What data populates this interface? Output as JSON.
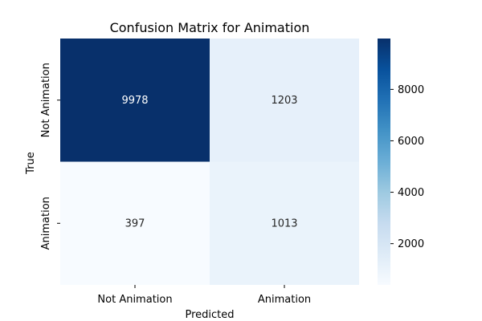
{
  "chart_data": {
    "type": "heatmap",
    "title": "Confusion Matrix for Animation",
    "xlabel": "Predicted",
    "ylabel": "True",
    "x_categories": [
      "Not Animation",
      "Animation"
    ],
    "y_categories": [
      "Not Animation",
      "Animation"
    ],
    "values": [
      [
        9978,
        1203
      ],
      [
        397,
        1013
      ]
    ],
    "colormap": "Blues",
    "colorbar": {
      "min": 397,
      "max": 9978,
      "ticks": [
        2000,
        4000,
        6000,
        8000
      ]
    },
    "grid": false
  }
}
